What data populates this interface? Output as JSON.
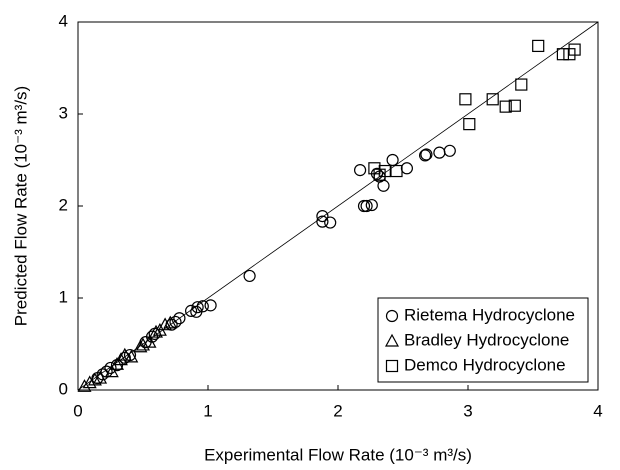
{
  "chart_data": {
    "type": "scatter",
    "x_label": "Experimental Flow Rate (10⁻³ m³/s)",
    "y_label": "Predicted Flow Rate (10⁻³ m³/s)",
    "xlim": [
      0,
      4
    ],
    "ylim": [
      0,
      4
    ],
    "xticks": [
      0,
      1,
      2,
      3,
      4
    ],
    "yticks": [
      0,
      1,
      2,
      3,
      4
    ],
    "grid": false,
    "legend": "lower right",
    "diagonal": true,
    "series": [
      {
        "name": "Rietema Hydrocyclone",
        "marker": "circle",
        "color": "#000000",
        "x": [
          1.32,
          1.02,
          0.96,
          0.92,
          0.87,
          0.91,
          0.78,
          0.75,
          0.72,
          0.57,
          0.59,
          0.52,
          0.4,
          0.36,
          0.3,
          0.25,
          0.15,
          0.19,
          0.22,
          1.88,
          1.88,
          1.94,
          2.17,
          2.2,
          2.22,
          2.26,
          2.35,
          2.42,
          2.53,
          2.67,
          2.68,
          2.78,
          2.86,
          2.32,
          2.3
        ],
        "values": [
          1.24,
          0.92,
          0.91,
          0.9,
          0.86,
          0.85,
          0.78,
          0.74,
          0.71,
          0.58,
          0.61,
          0.52,
          0.38,
          0.35,
          0.27,
          0.24,
          0.13,
          0.17,
          0.2,
          1.89,
          1.83,
          1.82,
          2.39,
          2.0,
          2.0,
          2.01,
          2.22,
          2.5,
          2.41,
          2.55,
          2.56,
          2.58,
          2.6,
          2.32,
          2.35
        ]
      },
      {
        "name": "Bradley Hydrocyclone",
        "marker": "triangle",
        "color": "#000000",
        "x": [
          0.41,
          0.36,
          0.33,
          0.5,
          0.55,
          0.63,
          0.67,
          0.6,
          0.26,
          0.17,
          0.05,
          0.09,
          0.48,
          0.71,
          0.13,
          0.3
        ],
        "values": [
          0.36,
          0.38,
          0.33,
          0.49,
          0.52,
          0.65,
          0.71,
          0.63,
          0.2,
          0.13,
          0.04,
          0.08,
          0.47,
          0.73,
          0.11,
          0.28
        ]
      },
      {
        "name": "Demco Hydrocyclone",
        "marker": "square",
        "color": "#000000",
        "x": [
          3.54,
          3.73,
          3.78,
          3.82,
          3.41,
          3.19,
          2.98,
          3.01,
          3.29,
          3.36,
          2.28,
          2.36,
          2.45,
          2.32
        ],
        "values": [
          3.74,
          3.65,
          3.65,
          3.7,
          3.32,
          3.16,
          3.16,
          2.89,
          3.08,
          3.09,
          2.41,
          2.38,
          2.38,
          2.34
        ]
      }
    ]
  }
}
